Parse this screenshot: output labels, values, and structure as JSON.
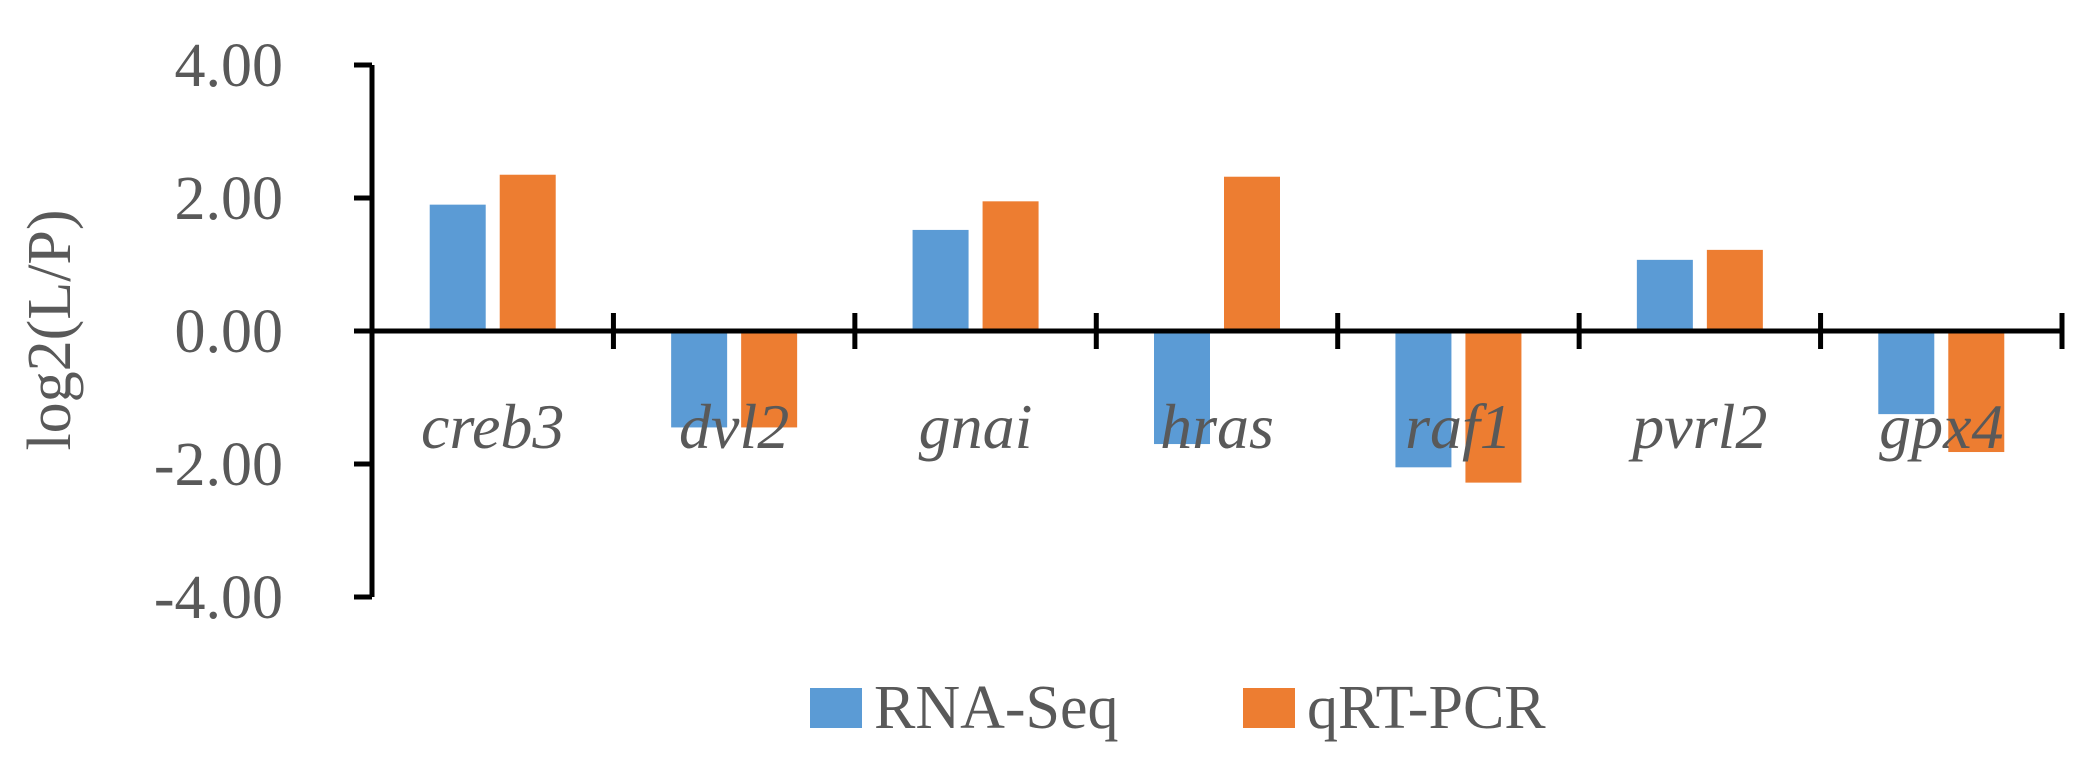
{
  "chart_data": {
    "type": "bar",
    "title": "",
    "xlabel": "",
    "ylabel": "log2(L/P)",
    "ylim": [
      -4,
      4
    ],
    "yticks": [
      4,
      2,
      0,
      -2,
      -4
    ],
    "ytick_labels": [
      "4.00",
      "2.00",
      "0.00",
      "-2.00",
      "-4.00"
    ],
    "categories": [
      "creb3",
      "dvl2",
      "gnai",
      "hras",
      "raf1",
      "pvrl2",
      "gpx4"
    ],
    "series": [
      {
        "name": "RNA-Seq",
        "color": "#5B9BD5",
        "values": [
          1.9,
          -1.45,
          1.52,
          -1.7,
          -2.05,
          1.07,
          -1.25
        ]
      },
      {
        "name": "qRT-PCR",
        "color": "#ED7D31",
        "values": [
          2.35,
          -1.45,
          1.95,
          2.32,
          -2.28,
          1.22,
          -1.82
        ]
      }
    ],
    "legend_position": "bottom-center",
    "grid": false
  }
}
